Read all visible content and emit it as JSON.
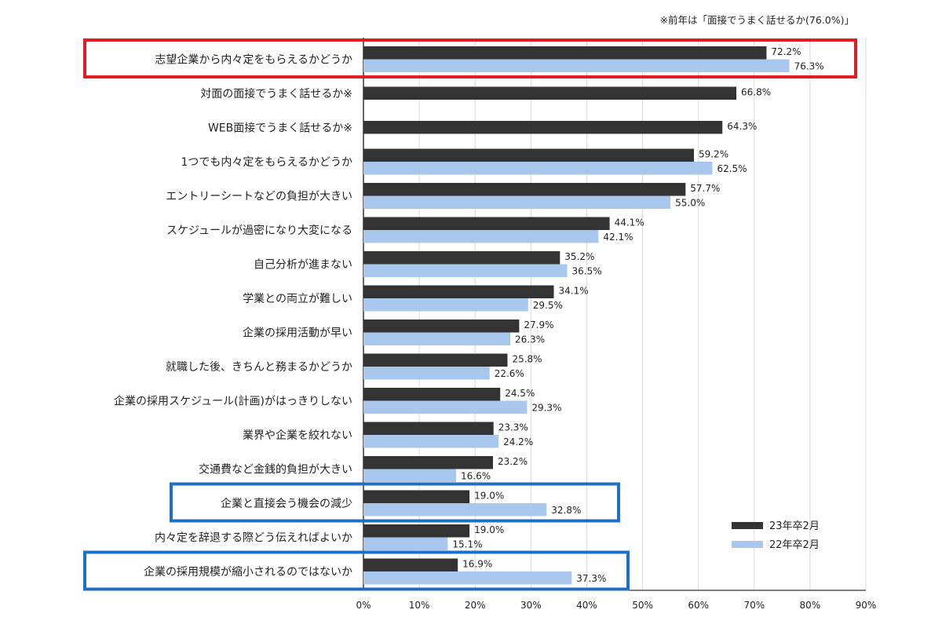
{
  "note": "※前年は「面接でうまく話せるか(76.0%)」",
  "colors": {
    "series_2023": "#333333",
    "series_2022": "#a9c7ec",
    "highlight_red": "#e31b23",
    "highlight_blue": "#1f6fc6",
    "grid": "#d9d9d9"
  },
  "chart_data": {
    "type": "bar",
    "orientation": "horizontal",
    "categories": [
      "志望企業から内々定をもらえるかどうか",
      "対面の面接でうまく話せるか※",
      "WEB面接でうまく話せるか※",
      "1つでも内々定をもらえるかどうか",
      "エントリーシートなどの負担が大きい",
      "スケジュールが過密になり大変になる",
      "自己分析が進まない",
      "学業との両立が難しい",
      "企業の採用活動が早い",
      "就職した後、きちんと務まるかどうか",
      "企業の採用スケジュール(計画)がはっきりしない",
      "業界や企業を絞れない",
      "交通費など金銭的負担が大きい",
      "企業と直接会う機会の減少",
      "内々定を辞退する際どう伝えればよいか",
      "企業の採用規模が縮小されるのではないか"
    ],
    "series": [
      {
        "name": "23年卒2月",
        "values": [
          72.2,
          66.8,
          64.3,
          59.2,
          57.7,
          44.1,
          35.2,
          34.1,
          27.9,
          25.8,
          24.5,
          23.3,
          23.2,
          19.0,
          19.0,
          16.9
        ],
        "labels": [
          "72.2%",
          "66.8%",
          "64.3%",
          "59.2%",
          "57.7%",
          "44.1%",
          "35.2%",
          "34.1%",
          "27.9%",
          "25.8%",
          "24.5%",
          "23.3%",
          "23.2%",
          "19.0%",
          "19.0%",
          "16.9%"
        ]
      },
      {
        "name": "22年卒2月",
        "values": [
          76.3,
          null,
          null,
          62.5,
          55.0,
          42.1,
          36.5,
          29.5,
          26.3,
          22.6,
          29.3,
          24.2,
          16.6,
          32.8,
          15.1,
          37.3
        ],
        "labels": [
          "76.3%",
          "",
          "",
          "62.5%",
          "55.0%",
          "42.1%",
          "36.5%",
          "29.5%",
          "26.3%",
          "22.6%",
          "29.3%",
          "24.2%",
          "16.6%",
          "32.8%",
          "15.1%",
          "37.3%"
        ]
      }
    ],
    "xlim": [
      0,
      90
    ],
    "xticks": [
      "0%",
      "10%",
      "20%",
      "30%",
      "40%",
      "50%",
      "60%",
      "70%",
      "80%",
      "90%"
    ],
    "grid": true,
    "legend_position": "bottom-right",
    "highlights": [
      {
        "category_index": 0,
        "color": "red"
      },
      {
        "category_index": 13,
        "color": "blue"
      },
      {
        "category_index": 15,
        "color": "blue"
      }
    ]
  }
}
